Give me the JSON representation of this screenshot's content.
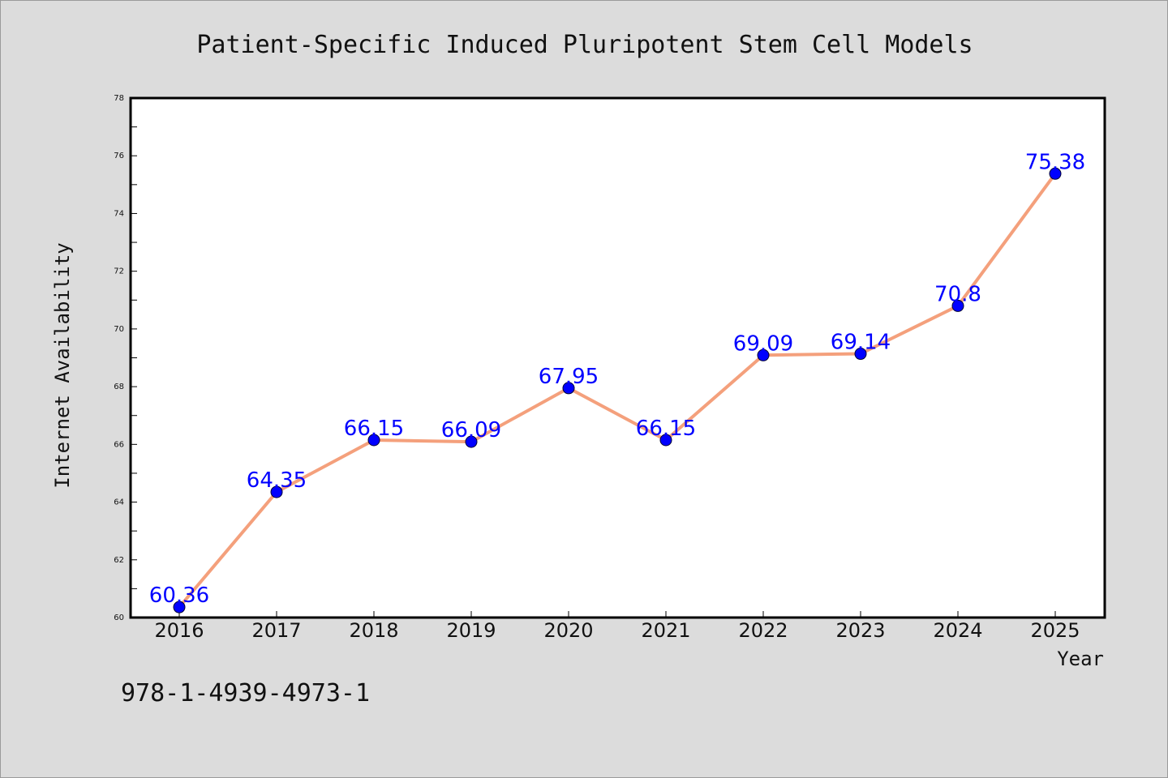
{
  "chart_data": {
    "type": "line",
    "title": "Patient-Specific Induced Pluripotent Stem Cell Models",
    "xlabel": "Year",
    "ylabel": "Internet Availability",
    "categories": [
      "2016",
      "2017",
      "2018",
      "2019",
      "2020",
      "2021",
      "2022",
      "2023",
      "2024",
      "2025"
    ],
    "values": [
      60.36,
      64.35,
      66.15,
      66.09,
      67.95,
      66.15,
      69.09,
      69.14,
      70.8,
      75.38
    ],
    "data_labels": [
      "60.36",
      "64.35",
      "66.15",
      "66.09",
      "67.95",
      "66.15",
      "69.09",
      "69.14",
      "70.8",
      "75.38"
    ],
    "ylim": [
      60,
      78
    ],
    "yticks": [
      "60",
      "62",
      "64",
      "66",
      "68",
      "70",
      "72",
      "74",
      "76",
      "78"
    ],
    "grid": false,
    "line_color": "#f4a07c",
    "marker_color": "#0000ff",
    "label_color": "#0000ff"
  },
  "footer": {
    "isbn": "978-1-4939-4973-1"
  }
}
